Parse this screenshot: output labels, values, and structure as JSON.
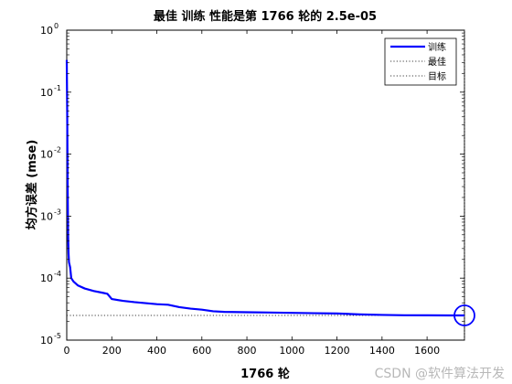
{
  "chart_data": {
    "type": "line",
    "title": "最佳 训练 性能是第 1766 轮的 2.5e-05",
    "xlabel": "1766 轮",
    "ylabel": "均方误差 (mse)",
    "xlim": [
      0,
      1766
    ],
    "ylim": [
      1e-05,
      1
    ],
    "yscale": "log",
    "x_ticks": [
      0,
      200,
      400,
      600,
      800,
      1000,
      1200,
      1400,
      1600
    ],
    "y_ticks": [
      {
        "value": 1,
        "base": "10",
        "exp": "0"
      },
      {
        "value": 0.1,
        "base": "10",
        "exp": "-1"
      },
      {
        "value": 0.01,
        "base": "10",
        "exp": "-2"
      },
      {
        "value": 0.001,
        "base": "10",
        "exp": "-3"
      },
      {
        "value": 0.0001,
        "base": "10",
        "exp": "-4"
      },
      {
        "value": 1e-05,
        "base": "10",
        "exp": "-5"
      }
    ],
    "legend_position": "top-right",
    "series": [
      {
        "name": "训练",
        "color": "#0000ff",
        "style": "solid",
        "x": [
          0,
          2,
          4,
          6,
          8,
          10,
          15,
          20,
          30,
          50,
          80,
          120,
          160,
          180,
          200,
          250,
          300,
          350,
          400,
          450,
          500,
          550,
          600,
          650,
          700,
          800,
          900,
          1000,
          1100,
          1200,
          1300,
          1400,
          1500,
          1600,
          1700,
          1766
        ],
        "y": [
          0.33,
          0.05,
          0.003,
          0.0005,
          0.00025,
          0.00018,
          0.00015,
          0.0001,
          8.8e-05,
          7.6e-05,
          6.8e-05,
          6.2e-05,
          5.8e-05,
          5.6e-05,
          4.6e-05,
          4.3e-05,
          4.1e-05,
          3.95e-05,
          3.8e-05,
          3.72e-05,
          3.4e-05,
          3.22e-05,
          3.1e-05,
          2.92e-05,
          2.85e-05,
          2.82e-05,
          2.79e-05,
          2.75e-05,
          2.72e-05,
          2.69e-05,
          2.6e-05,
          2.55e-05,
          2.52e-05,
          2.51e-05,
          2.5e-05,
          2.5e-05
        ]
      },
      {
        "name": "最佳",
        "color": "#3c3c3c",
        "style": "dotted",
        "x_value": 1766,
        "marker_y": 2.5e-05
      },
      {
        "name": "目标",
        "color": "#3c3c3c",
        "style": "dotted",
        "y_value": 2.5e-05
      }
    ]
  },
  "watermark": "CSDN @软件算法开发"
}
